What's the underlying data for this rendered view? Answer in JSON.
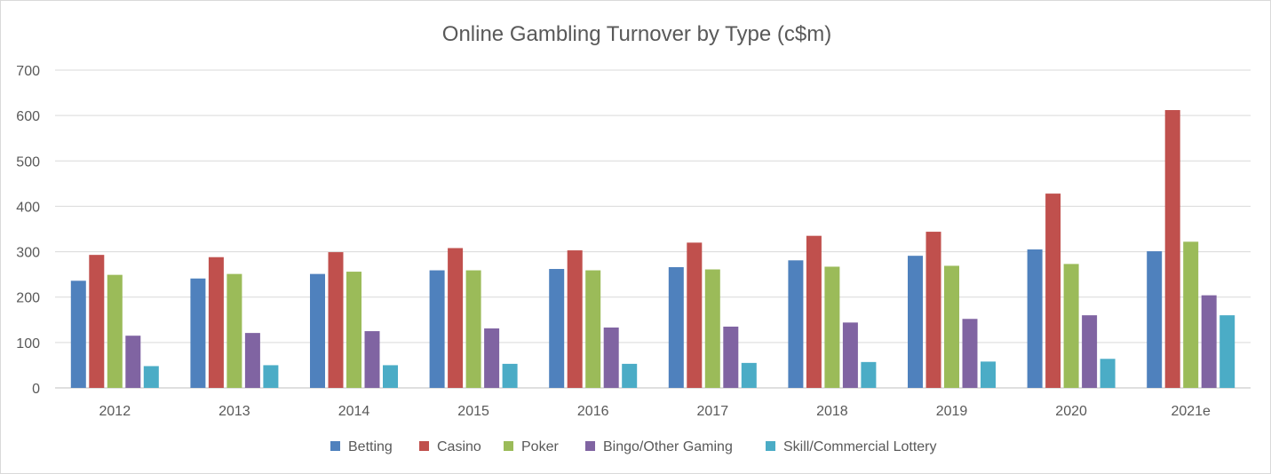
{
  "chart_data": {
    "type": "bar",
    "title": "Online Gambling Turnover by Type (c$m)",
    "xlabel": "",
    "ylabel": "",
    "ylim": [
      0,
      700
    ],
    "yticks": [
      "0",
      "100",
      "200",
      "300",
      "400",
      "500",
      "600",
      "700"
    ],
    "ytick_values": [
      0,
      100,
      200,
      300,
      400,
      500,
      600,
      700
    ],
    "grid": true,
    "legend_position": "bottom",
    "categories": [
      "2012",
      "2013",
      "2014",
      "2015",
      "2016",
      "2017",
      "2018",
      "2019",
      "2020",
      "2021e"
    ],
    "series": [
      {
        "name": "Betting",
        "color": "#4f81bd",
        "values": [
          236,
          241,
          251,
          259,
          262,
          266,
          281,
          291,
          305,
          301
        ]
      },
      {
        "name": "Casino",
        "color": "#c0504d",
        "values": [
          293,
          288,
          299,
          308,
          303,
          320,
          335,
          344,
          428,
          612
        ]
      },
      {
        "name": "Poker",
        "color": "#9bbb59",
        "values": [
          249,
          251,
          256,
          259,
          259,
          261,
          267,
          269,
          273,
          322
        ]
      },
      {
        "name": "Bingo/Other Gaming",
        "color": "#8064a2",
        "values": [
          115,
          121,
          125,
          131,
          133,
          135,
          144,
          152,
          160,
          204
        ]
      },
      {
        "name": "Skill/Commercial Lottery",
        "color": "#4bacc6",
        "values": [
          48,
          50,
          50,
          53,
          53,
          55,
          57,
          58,
          64,
          160
        ]
      }
    ]
  }
}
